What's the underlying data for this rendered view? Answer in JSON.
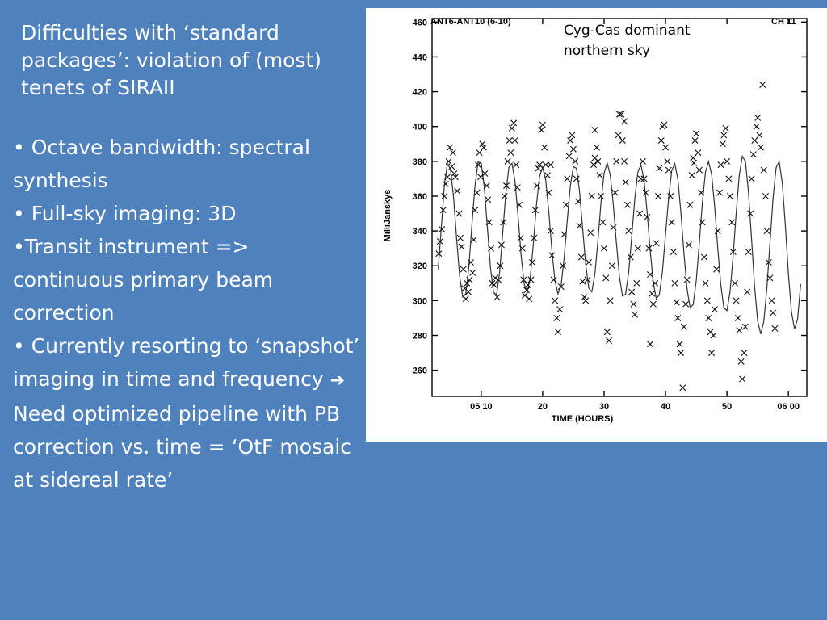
{
  "slide": {
    "title": "Difficulties with ‘standard packages’: violation of (most) tenets of SIRAII",
    "bullets": [
      {
        "prefix": "• ",
        "text": "Octave bandwidth: spectral synthesis"
      },
      {
        "prefix": "• ",
        "text": "Full-sky imaging: 3D"
      },
      {
        "prefix": "•",
        "text": "Transit instrument => continuous primary beam correction"
      },
      {
        "prefix": "• ",
        "text": "Currently resorting to ‘snapshot’ imaging in time and frequency",
        "icon": "right-arrow-icon",
        "icon_char": "➔",
        "suffix": " Need optimized pipeline with PB correction vs. time = ‘OtF mosaic at sidereal rate’"
      }
    ]
  },
  "chart_data": {
    "type": "scatter",
    "xlabel": "TIME (HOURS)",
    "ylabel": "MilliJanskys",
    "xlim": [
      2,
      63
    ],
    "ylim": [
      245,
      462
    ],
    "x_ticks": [
      {
        "value": 10,
        "label": "05 10"
      },
      {
        "value": 20,
        "label": "20"
      },
      {
        "value": 30,
        "label": "30"
      },
      {
        "value": 40,
        "label": "40"
      },
      {
        "value": 50,
        "label": "50"
      },
      {
        "value": 60,
        "label": "06 00"
      }
    ],
    "y_ticks": [
      260,
      280,
      300,
      320,
      340,
      360,
      380,
      400,
      420,
      440,
      460
    ],
    "panel_left_label": "ANT6-ANT10 (6-10)",
    "panel_right_label": "CH 11",
    "annotation": [
      "Cyg-Cas dominant",
      "northern sky"
    ],
    "fit_curve": {
      "name": "model fit",
      "x": [
        3.0,
        3.5,
        4.0,
        4.5,
        5.0,
        5.5,
        6.0,
        6.5,
        7.0,
        7.5,
        8.0,
        8.5,
        9.0,
        9.5,
        10.0,
        10.5,
        11.0,
        11.5,
        12.0,
        12.5,
        13.0,
        13.5,
        14.0,
        14.5,
        15.0,
        15.5,
        16.0,
        16.5,
        17.0,
        17.5,
        18.0,
        18.5,
        19.0,
        19.5,
        20.0,
        20.5,
        21.0,
        21.5,
        22.0,
        22.5,
        23.0,
        23.5,
        24.0,
        24.5,
        25.0,
        25.5,
        26.0,
        26.5,
        27.0,
        27.5,
        28.0,
        28.5,
        29.0,
        29.5,
        30.0,
        30.5,
        31.0,
        31.5,
        32.0,
        32.5,
        33.0,
        33.5,
        34.0,
        34.5,
        35.0,
        35.5,
        36.0,
        36.5,
        37.0,
        37.5,
        38.0,
        38.5,
        39.0,
        39.5,
        40.0,
        40.5,
        41.0,
        41.5,
        42.0,
        42.5,
        43.0,
        43.5,
        44.0,
        44.5,
        45.0,
        45.5,
        46.0,
        46.5,
        47.0,
        47.5,
        48.0,
        48.5,
        49.0,
        49.5,
        50.0,
        50.5,
        51.0,
        51.5,
        52.0,
        52.5,
        53.0,
        53.5,
        54.0,
        54.5,
        55.0,
        55.5,
        56.0,
        56.5,
        57.0,
        57.5,
        58.0,
        58.5,
        59.0,
        59.5,
        60.0,
        60.5,
        61.0,
        61.5,
        62.0
      ],
      "y": [
        318.0,
        341.6,
        366.0,
        378.6,
        375.5,
        359.4,
        335.5,
        313.9,
        302.0,
        304.0,
        319.5,
        344.0,
        366.2,
        379.7,
        378.9,
        364.9,
        342.0,
        318.9,
        304.6,
        303.5,
        316.4,
        339.0,
        361.6,
        376.4,
        378.8,
        368.7,
        348.6,
        325.8,
        309.4,
        305.0,
        313.7,
        333.0,
        355.1,
        371.4,
        376.6,
        369.2,
        351.2,
        329.3,
        311.5,
        303.9,
        308.5,
        324.4,
        345.7,
        365.5,
        377.0,
        376.0,
        362.7,
        341.7,
        320.9,
        307.2,
        305.0,
        315.2,
        334.6,
        356.6,
        373.2,
        379.1,
        372.3,
        355.1,
        333.3,
        313.7,
        302.6,
        303.6,
        316.2,
        336.7,
        358.4,
        373.8,
        377.9,
        369.6,
        351.2,
        329.2,
        310.6,
        301.1,
        303.4,
        316.6,
        337.6,
        359.1,
        374.6,
        378.7,
        369.9,
        350.5,
        327.0,
        306.7,
        295.9,
        297.8,
        311.5,
        333.2,
        356.4,
        373.8,
        379.9,
        372.6,
        354.0,
        330.4,
        309.0,
        295.8,
        294.3,
        305.0,
        325.3,
        350.0,
        371.8,
        382.9,
        380.0,
        362.6,
        335.9,
        308.3,
        288.2,
        280.8,
        288.2,
        307.6,
        333.3,
        358.9,
        376.4,
        379.8,
        367.6,
        343.3,
        315.3,
        293.3,
        283.7,
        289.5,
        309.6
      ]
    },
    "series": [
      {
        "marker": "x",
        "points": [
          [
            3.1,
            327
          ],
          [
            3.3,
            334
          ],
          [
            3.6,
            341
          ],
          [
            3.8,
            352
          ],
          [
            4.0,
            360
          ],
          [
            4.2,
            367
          ],
          [
            4.5,
            371
          ],
          [
            4.7,
            380
          ],
          [
            4.9,
            388
          ],
          [
            5.2,
            377
          ],
          [
            5.4,
            385
          ],
          [
            5.6,
            373
          ],
          [
            5.8,
            371
          ],
          [
            6.1,
            363
          ],
          [
            6.4,
            350
          ],
          [
            6.6,
            336
          ],
          [
            6.8,
            331
          ],
          [
            7.1,
            318
          ],
          [
            7.3,
            307
          ],
          [
            7.5,
            301
          ],
          [
            7.7,
            310
          ],
          [
            7.9,
            305
          ],
          [
            8.1,
            312
          ],
          [
            8.3,
            322
          ],
          [
            8.6,
            316
          ],
          [
            8.8,
            335
          ],
          [
            9.0,
            352
          ],
          [
            9.3,
            362
          ],
          [
            9.5,
            378
          ],
          [
            9.7,
            385
          ],
          [
            9.9,
            371
          ],
          [
            10.2,
            390
          ],
          [
            10.4,
            388
          ],
          [
            10.6,
            373
          ],
          [
            10.9,
            366
          ],
          [
            11.1,
            358
          ],
          [
            11.3,
            345
          ],
          [
            11.6,
            330
          ],
          [
            11.8,
            310
          ],
          [
            12.1,
            309
          ],
          [
            12.3,
            313
          ],
          [
            12.6,
            302
          ],
          [
            12.8,
            312
          ],
          [
            13.1,
            320
          ],
          [
            13.3,
            332
          ],
          [
            13.6,
            345
          ],
          [
            13.8,
            360
          ],
          [
            14.1,
            366
          ],
          [
            14.3,
            380
          ],
          [
            14.6,
            392
          ],
          [
            14.8,
            385
          ],
          [
            15.0,
            399
          ],
          [
            15.3,
            402
          ],
          [
            15.5,
            392
          ],
          [
            15.7,
            378
          ],
          [
            15.9,
            365
          ],
          [
            16.2,
            355
          ],
          [
            16.4,
            336
          ],
          [
            16.7,
            330
          ],
          [
            16.9,
            312
          ],
          [
            17.1,
            303
          ],
          [
            17.4,
            306
          ],
          [
            17.6,
            309
          ],
          [
            17.8,
            301
          ],
          [
            18.1,
            312
          ],
          [
            18.3,
            322
          ],
          [
            18.6,
            336
          ],
          [
            18.8,
            352
          ],
          [
            19.1,
            366
          ],
          [
            19.3,
            376
          ],
          [
            19.5,
            378
          ],
          [
            19.8,
            398
          ],
          [
            20.0,
            401
          ],
          [
            20.3,
            388
          ],
          [
            20.5,
            378
          ],
          [
            20.8,
            372
          ],
          [
            21.0,
            362
          ],
          [
            21.3,
            340
          ],
          [
            21.5,
            326
          ],
          [
            21.8,
            312
          ],
          [
            22.0,
            300
          ],
          [
            22.3,
            290
          ],
          [
            22.5,
            282
          ],
          [
            22.8,
            295
          ],
          [
            23.0,
            308
          ],
          [
            23.3,
            320
          ],
          [
            23.5,
            338
          ],
          [
            23.8,
            355
          ],
          [
            24.0,
            370
          ],
          [
            24.3,
            383
          ],
          [
            24.5,
            392
          ],
          [
            24.8,
            395
          ],
          [
            25.0,
            387
          ],
          [
            25.3,
            380
          ],
          [
            25.5,
            370
          ],
          [
            25.8,
            357
          ],
          [
            26.0,
            343
          ],
          [
            26.3,
            325
          ],
          [
            26.5,
            311
          ],
          [
            26.8,
            302
          ],
          [
            27.0,
            300
          ],
          [
            27.3,
            312
          ],
          [
            27.5,
            322
          ],
          [
            27.8,
            339
          ],
          [
            28.0,
            360
          ],
          [
            28.3,
            378
          ],
          [
            28.5,
            382
          ],
          [
            28.8,
            388
          ],
          [
            29.0,
            380
          ],
          [
            29.3,
            372
          ],
          [
            29.5,
            360
          ],
          [
            29.8,
            345
          ],
          [
            30.0,
            330
          ],
          [
            30.3,
            313
          ],
          [
            30.5,
            282
          ],
          [
            30.8,
            277
          ],
          [
            31.0,
            300
          ],
          [
            31.3,
            320
          ],
          [
            31.5,
            342
          ],
          [
            31.8,
            362
          ],
          [
            32.0,
            380
          ],
          [
            32.3,
            395
          ],
          [
            32.5,
            407
          ],
          [
            32.8,
            407
          ],
          [
            33.0,
            392
          ],
          [
            33.3,
            380
          ],
          [
            33.5,
            368
          ],
          [
            33.8,
            355
          ],
          [
            34.0,
            340
          ],
          [
            34.3,
            325
          ],
          [
            34.5,
            305
          ],
          [
            34.8,
            298
          ],
          [
            35.0,
            292
          ],
          [
            35.3,
            310
          ],
          [
            35.5,
            330
          ],
          [
            35.8,
            350
          ],
          [
            36.0,
            370
          ],
          [
            36.3,
            380
          ],
          [
            36.5,
            370
          ],
          [
            36.8,
            362
          ],
          [
            37.0,
            348
          ],
          [
            37.3,
            330
          ],
          [
            37.5,
            315
          ],
          [
            37.8,
            304
          ],
          [
            38.0,
            298
          ],
          [
            38.3,
            310
          ],
          [
            38.5,
            333
          ],
          [
            38.8,
            360
          ],
          [
            39.0,
            376
          ],
          [
            39.3,
            392
          ],
          [
            39.5,
            400
          ],
          [
            39.8,
            401
          ],
          [
            40.0,
            388
          ],
          [
            40.3,
            380
          ],
          [
            40.5,
            375
          ],
          [
            40.8,
            360
          ],
          [
            41.0,
            345
          ],
          [
            41.3,
            328
          ],
          [
            41.5,
            310
          ],
          [
            41.8,
            299
          ],
          [
            42.0,
            290
          ],
          [
            42.3,
            275
          ],
          [
            42.5,
            270
          ],
          [
            42.8,
            250
          ],
          [
            43.0,
            285
          ],
          [
            43.3,
            298
          ],
          [
            43.5,
            312
          ],
          [
            43.8,
            332
          ],
          [
            44.0,
            355
          ],
          [
            44.3,
            372
          ],
          [
            44.5,
            382
          ],
          [
            44.8,
            392
          ],
          [
            45.0,
            396
          ],
          [
            45.3,
            385
          ],
          [
            45.5,
            375
          ],
          [
            45.8,
            362
          ],
          [
            46.0,
            345
          ],
          [
            46.3,
            325
          ],
          [
            46.5,
            310
          ],
          [
            46.8,
            300
          ],
          [
            47.0,
            290
          ],
          [
            47.3,
            282
          ],
          [
            47.5,
            270
          ],
          [
            47.8,
            280
          ],
          [
            48.0,
            295
          ],
          [
            48.3,
            318
          ],
          [
            48.5,
            340
          ],
          [
            48.8,
            362
          ],
          [
            49.0,
            378
          ],
          [
            49.3,
            390
          ],
          [
            49.5,
            395
          ],
          [
            49.8,
            399
          ],
          [
            50.0,
            380
          ],
          [
            50.3,
            370
          ],
          [
            50.5,
            360
          ],
          [
            50.8,
            345
          ],
          [
            51.0,
            328
          ],
          [
            51.3,
            310
          ],
          [
            51.5,
            300
          ],
          [
            51.8,
            290
          ],
          [
            52.0,
            283
          ],
          [
            52.3,
            265
          ],
          [
            52.5,
            255
          ],
          [
            52.8,
            270
          ],
          [
            53.0,
            285
          ],
          [
            53.3,
            305
          ],
          [
            53.5,
            328
          ],
          [
            53.8,
            350
          ],
          [
            54.0,
            370
          ],
          [
            54.3,
            384
          ],
          [
            54.5,
            392
          ],
          [
            54.8,
            400
          ],
          [
            55.0,
            405
          ],
          [
            55.3,
            395
          ],
          [
            55.5,
            388
          ],
          [
            55.8,
            424
          ],
          [
            56.0,
            375
          ],
          [
            56.3,
            360
          ],
          [
            56.5,
            340
          ],
          [
            56.8,
            322
          ],
          [
            57.0,
            313
          ],
          [
            57.3,
            300
          ],
          [
            57.5,
            293
          ],
          [
            57.8,
            284
          ],
          [
            37.5,
            275
          ],
          [
            44.6,
            379
          ],
          [
            28.5,
            398
          ],
          [
            21.3,
            378
          ],
          [
            33.3,
            403
          ]
        ]
      }
    ]
  }
}
